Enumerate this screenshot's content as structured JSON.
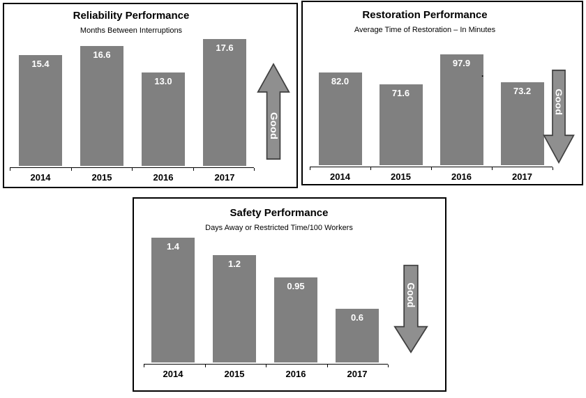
{
  "colors": {
    "bar": "#808080",
    "bar_label": "#ffffff",
    "arrow_fill": "#8f8f8f",
    "arrow_stroke": "#3f3f3f",
    "box_border": "#000000",
    "text": "#000000",
    "background": "#ffffff"
  },
  "chart_data": [
    {
      "type": "bar",
      "title": "Reliability Performance",
      "subtitle": "Months Between Interruptions",
      "categories": [
        "2014",
        "2015",
        "2016",
        "2017"
      ],
      "values": [
        15.4,
        16.6,
        13.0,
        17.6
      ],
      "value_labels": [
        "15.4",
        "16.6",
        "13.0",
        "17.6"
      ],
      "ylim": [
        0,
        18
      ],
      "grid": false,
      "legend": false,
      "good_arrow": {
        "direction": "up",
        "label": "Good"
      }
    },
    {
      "type": "bar",
      "title": "Restoration Performance",
      "subtitle": "Average Time of Restoration – In Minutes",
      "categories": [
        "2014",
        "2015",
        "2016",
        "2017"
      ],
      "values": [
        82.0,
        71.6,
        97.9,
        73.2
      ],
      "value_labels": [
        "82.0",
        "71.6",
        "97.9",
        "73.2"
      ],
      "ylim": [
        0,
        100
      ],
      "grid": false,
      "legend": false,
      "annotation": ".",
      "good_arrow": {
        "direction": "down",
        "label": "Good"
      }
    },
    {
      "type": "bar",
      "title": "Safety Performance",
      "subtitle": "Days Away or Restricted Time/100 Workers",
      "categories": [
        "2014",
        "2015",
        "2016",
        "2017"
      ],
      "values": [
        1.4,
        1.2,
        0.95,
        0.6
      ],
      "value_labels": [
        "1.4",
        "1.2",
        "0.95",
        "0.6"
      ],
      "ylim": [
        0,
        1.5
      ],
      "grid": false,
      "legend": false,
      "good_arrow": {
        "direction": "down",
        "label": "Good"
      }
    }
  ]
}
